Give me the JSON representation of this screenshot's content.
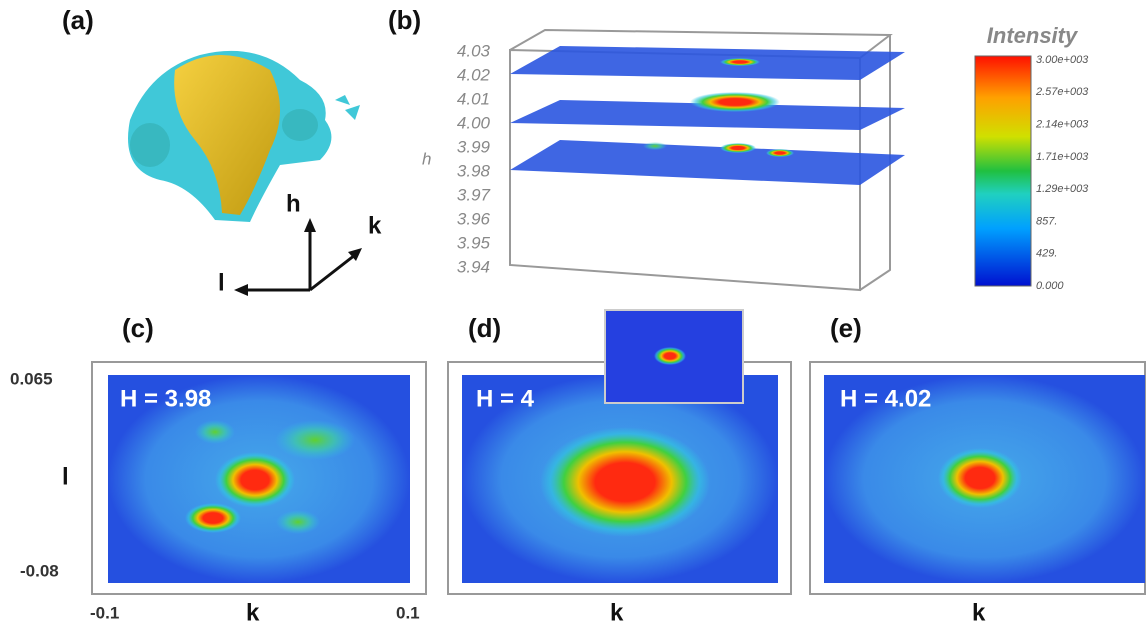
{
  "panel_a": {
    "label": "(a)",
    "axes": [
      "h",
      "k",
      "l"
    ]
  },
  "panel_b": {
    "label": "(b)",
    "axis_label": "h",
    "h_ticks": [
      "4.03",
      "4.02",
      "4.01",
      "4.00",
      "3.99",
      "3.98",
      "3.97",
      "3.96",
      "3.95",
      "3.94"
    ],
    "colorbar_title": "Intensity",
    "colorbar_ticks": [
      "3.00e+003",
      "2.57e+003",
      "2.14e+003",
      "1.71e+003",
      "1.29e+003",
      "857.",
      "429.",
      "0.000"
    ]
  },
  "panel_c": {
    "label": "(c)",
    "slice": "H = 3.98",
    "y_label": "l",
    "y_top": "0.065",
    "y_bottom": "-0.08",
    "x_label": "k",
    "x_left": "-0.1",
    "x_right": "0.1"
  },
  "panel_d": {
    "label": "(d)",
    "slice": "H = 4",
    "x_label": "k"
  },
  "panel_e": {
    "label": "(e)",
    "slice": "H = 4.02",
    "x_label": "k"
  }
}
